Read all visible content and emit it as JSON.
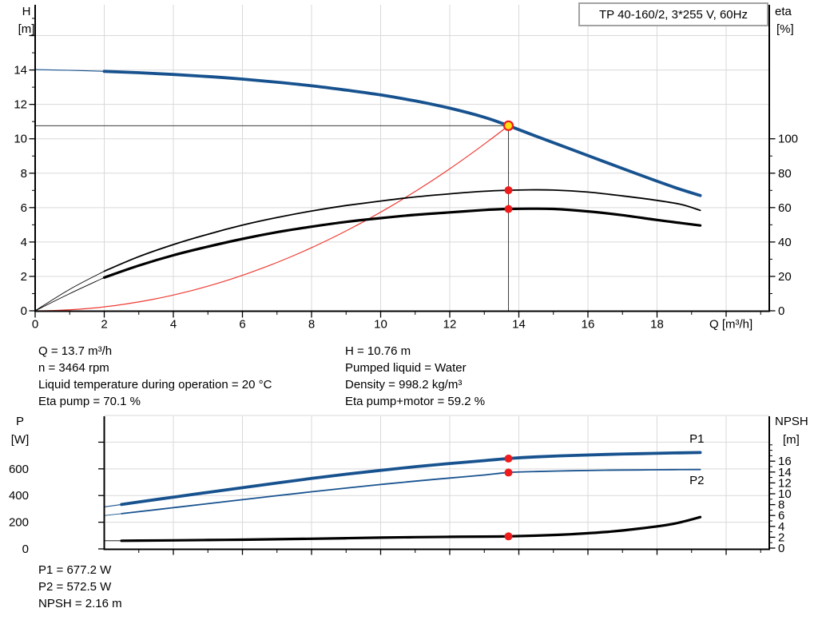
{
  "title_box": "TP 40-160/2, 3*255 V, 60Hz",
  "operating_info": {
    "col1": [
      "Q = 13.7 m³/h",
      "n = 3464 rpm",
      "Liquid temperature during operation = 20 °C",
      "Eta pump = 70.1 %"
    ],
    "col2": [
      "H = 10.76 m",
      "Pumped liquid = Water",
      "Density = 998.2 kg/m³",
      "Eta pump+motor = 59.2 %"
    ]
  },
  "result_info": [
    "P1 = 677.2 W",
    "P2 = 572.5 W",
    "NPSH = 2.16 m"
  ],
  "colors": {
    "curve_blue": "#17528f",
    "curve_black": "#000000",
    "system_curve_red": "#ef3b33",
    "marker_red": "#ee1c1c",
    "marker_yellow": "#ffe014",
    "grid": "#d9d9d9",
    "axis": "#000000",
    "crosshair": "#3c3c3c"
  },
  "chart_data": [
    {
      "id": "head-chart",
      "type": "line",
      "x_axis": {
        "label": "Q [m³/h]",
        "min": 0,
        "max": 21.25,
        "labeled_ticks": [
          0,
          2,
          4,
          6,
          8,
          10,
          12,
          14,
          16,
          18
        ],
        "unlabeled_major_ticks": [
          20
        ],
        "minor_ticks": [
          1,
          3,
          5,
          7,
          9,
          11,
          13,
          15,
          17,
          19,
          21
        ]
      },
      "y_left": {
        "label": "H",
        "unit": "[m]",
        "min": 0,
        "max": 17.7,
        "labeled_ticks": [
          0,
          2,
          4,
          6,
          8,
          10,
          12,
          14
        ],
        "unlabeled_major_ticks": [
          16
        ],
        "minor_ticks": [
          1,
          3,
          5,
          7,
          9,
          11,
          13,
          15,
          17
        ]
      },
      "y_right": {
        "label": "eta",
        "unit": "[%]",
        "min": 0,
        "max": 177,
        "labeled_ticks": [
          0,
          20,
          40,
          60,
          80,
          100
        ],
        "unlabeled_major_ticks": [],
        "minor_ticks": [
          10,
          30,
          50,
          70,
          90
        ]
      },
      "gridlines": {
        "x": [
          2,
          4,
          6,
          8,
          10,
          12,
          14,
          16,
          18,
          20
        ],
        "y": [
          2,
          4,
          6,
          8,
          10,
          12,
          14,
          16
        ]
      },
      "duty_point": {
        "q": 13.7,
        "h": 10.76
      },
      "series": [
        {
          "name": "pump-head-curve",
          "axis": "left",
          "color": "#17528f",
          "width": 3.8,
          "thin_width": 1.1,
          "thin_until": 2,
          "points": [
            [
              0,
              14.02
            ],
            [
              1,
              13.98
            ],
            [
              2,
              13.92
            ],
            [
              3,
              13.84
            ],
            [
              4,
              13.74
            ],
            [
              5,
              13.62
            ],
            [
              6,
              13.47
            ],
            [
              7,
              13.29
            ],
            [
              8,
              13.08
            ],
            [
              9,
              12.83
            ],
            [
              10,
              12.55
            ],
            [
              11,
              12.2
            ],
            [
              12,
              11.78
            ],
            [
              13,
              11.25
            ],
            [
              13.7,
              10.76
            ],
            [
              14.5,
              10.15
            ],
            [
              15.5,
              9.4
            ],
            [
              16.5,
              8.65
            ],
            [
              17.5,
              7.9
            ],
            [
              18.5,
              7.18
            ],
            [
              19.25,
              6.7
            ]
          ]
        },
        {
          "name": "eta-pump-curve",
          "axis": "right",
          "color": "#000000",
          "width": 1.8,
          "thin_width": 0.9,
          "thin_until": 2,
          "points": [
            [
              0,
              0
            ],
            [
              1,
              12.5
            ],
            [
              2,
              23
            ],
            [
              3,
              31.5
            ],
            [
              4,
              38.5
            ],
            [
              5,
              44.5
            ],
            [
              6,
              49.8
            ],
            [
              7,
              54.2
            ],
            [
              8,
              58
            ],
            [
              9,
              61.2
            ],
            [
              10,
              63.8
            ],
            [
              11,
              66.2
            ],
            [
              12,
              68
            ],
            [
              13,
              69.5
            ],
            [
              13.7,
              70.1
            ],
            [
              14.3,
              70.3
            ],
            [
              15,
              70.2
            ],
            [
              16,
              69
            ],
            [
              17,
              66.8
            ],
            [
              18,
              64.2
            ],
            [
              18.7,
              61.8
            ],
            [
              19.25,
              58.4
            ]
          ]
        },
        {
          "name": "eta-pump-motor-curve",
          "axis": "right",
          "color": "#000000",
          "width": 3.2,
          "thin_width": 0.9,
          "thin_until": 2,
          "points": [
            [
              0,
              0
            ],
            [
              1,
              10
            ],
            [
              2,
              19.3
            ],
            [
              3,
              26.3
            ],
            [
              4,
              32.3
            ],
            [
              5,
              37.3
            ],
            [
              6,
              41.8
            ],
            [
              7,
              45.7
            ],
            [
              8,
              48.9
            ],
            [
              9,
              51.7
            ],
            [
              10,
              53.9
            ],
            [
              11,
              55.8
            ],
            [
              12,
              57.2
            ],
            [
              13,
              58.6
            ],
            [
              13.7,
              59.2
            ],
            [
              14.3,
              59.35
            ],
            [
              15,
              59.2
            ],
            [
              16,
              57.8
            ],
            [
              17,
              55.6
            ],
            [
              18,
              52.8
            ],
            [
              18.7,
              51
            ],
            [
              19.25,
              49.6
            ]
          ]
        }
      ],
      "markers": [
        {
          "name": "duty-point-marker",
          "q": 13.7,
          "value": 10.76,
          "axis": "left",
          "style": "yellow"
        },
        {
          "name": "eta-pump-marker",
          "q": 13.7,
          "value": 70.1,
          "axis": "right",
          "style": "red"
        },
        {
          "name": "eta-pump-motor-marker",
          "q": 13.7,
          "value": 59.2,
          "axis": "right",
          "style": "red"
        }
      ]
    },
    {
      "id": "power-npsh-chart",
      "type": "line",
      "x_axis": {
        "label": "",
        "min": 2,
        "max": 21.25,
        "labeled_ticks": [],
        "unlabeled_major_ticks": [
          4,
          6,
          8,
          10,
          12,
          14,
          16,
          18,
          20
        ],
        "minor_ticks": [
          3,
          5,
          7,
          9,
          11,
          13,
          15,
          17,
          19,
          21
        ]
      },
      "y_left": {
        "label": "P",
        "unit": "[W]",
        "min": 0,
        "max": 994,
        "labeled_ticks": [
          0,
          200,
          400,
          600
        ],
        "unlabeled_major_ticks": [
          800
        ],
        "minor_ticks": []
      },
      "y_right": {
        "label": "NPSH",
        "unit": "[m]",
        "min": 0,
        "max": 24.4,
        "labeled_ticks": [
          0,
          2,
          4,
          6,
          8,
          10,
          12,
          14,
          16
        ],
        "unlabeled_major_ticks": [],
        "minor_ticks": [
          1,
          3,
          5,
          7,
          9,
          11,
          13,
          15,
          17,
          18,
          19
        ]
      },
      "gridlines": {
        "x": [
          4,
          6,
          8,
          10,
          12,
          14,
          16,
          18,
          20
        ],
        "y": [
          200,
          400,
          600,
          800,
          1000
        ]
      },
      "series": [
        {
          "name": "p1-curve",
          "axis": "left",
          "color": "#17528f",
          "width": 3.8,
          "thin_width": 1.1,
          "thin_until": 2.5,
          "points": [
            [
              2,
              315
            ],
            [
              2.5,
              333
            ],
            [
              3,
              352
            ],
            [
              4,
              388
            ],
            [
              5,
              424
            ],
            [
              6,
              459
            ],
            [
              7,
              494
            ],
            [
              8,
              528
            ],
            [
              9,
              560
            ],
            [
              10,
              589
            ],
            [
              11,
              616
            ],
            [
              12,
              640
            ],
            [
              13,
              662
            ],
            [
              13.7,
              677.2
            ],
            [
              14.5,
              690
            ],
            [
              15.5,
              700
            ],
            [
              16.5,
              708
            ],
            [
              17.5,
              714
            ],
            [
              18.5,
              719
            ],
            [
              19.25,
              722
            ]
          ]
        },
        {
          "name": "p2-curve",
          "axis": "left",
          "color": "#17528f",
          "width": 1.8,
          "thin_width": 0.9,
          "thin_until": 2.5,
          "points": [
            [
              2,
              250
            ],
            [
              2.5,
              264
            ],
            [
              3,
              279
            ],
            [
              4,
              309
            ],
            [
              5,
              339
            ],
            [
              6,
              369
            ],
            [
              7,
              399
            ],
            [
              8,
              428
            ],
            [
              9,
              456
            ],
            [
              10,
              483
            ],
            [
              11,
              508
            ],
            [
              12,
              531
            ],
            [
              13,
              554
            ],
            [
              13.7,
              572.5
            ],
            [
              14.5,
              580
            ],
            [
              15.5,
              586
            ],
            [
              16.5,
              590
            ],
            [
              17.5,
              592
            ],
            [
              18.5,
              594
            ],
            [
              19.25,
              595
            ]
          ]
        },
        {
          "name": "npsh-curve",
          "axis": "right",
          "color": "#000000",
          "width": 3.2,
          "thin_width": 0.9,
          "thin_until": 2.5,
          "points": [
            [
              2,
              1.35
            ],
            [
              2.5,
              1.36
            ],
            [
              3,
              1.38
            ],
            [
              4,
              1.42
            ],
            [
              5,
              1.48
            ],
            [
              6,
              1.55
            ],
            [
              7,
              1.63
            ],
            [
              8,
              1.72
            ],
            [
              9,
              1.82
            ],
            [
              10,
              1.92
            ],
            [
              11,
              2.02
            ],
            [
              12,
              2.08
            ],
            [
              13,
              2.12
            ],
            [
              13.7,
              2.16
            ],
            [
              14.5,
              2.3
            ],
            [
              15.5,
              2.55
            ],
            [
              16.5,
              2.95
            ],
            [
              17.5,
              3.6
            ],
            [
              18.5,
              4.5
            ],
            [
              19.25,
              5.7
            ]
          ]
        }
      ],
      "annotations": [
        {
          "text": "P1",
          "q": 18.94,
          "value": 826,
          "axis": "left",
          "color": "#17528f"
        },
        {
          "text": "P2",
          "q": 18.94,
          "value": 515,
          "axis": "left",
          "color": "#17528f"
        }
      ],
      "markers": [
        {
          "name": "p1-marker",
          "q": 13.7,
          "value": 677.2,
          "axis": "left",
          "style": "red"
        },
        {
          "name": "p2-marker",
          "q": 13.7,
          "value": 572.5,
          "axis": "left",
          "style": "red"
        },
        {
          "name": "npsh-marker",
          "q": 13.7,
          "value": 2.16,
          "axis": "right",
          "style": "red"
        }
      ]
    }
  ]
}
